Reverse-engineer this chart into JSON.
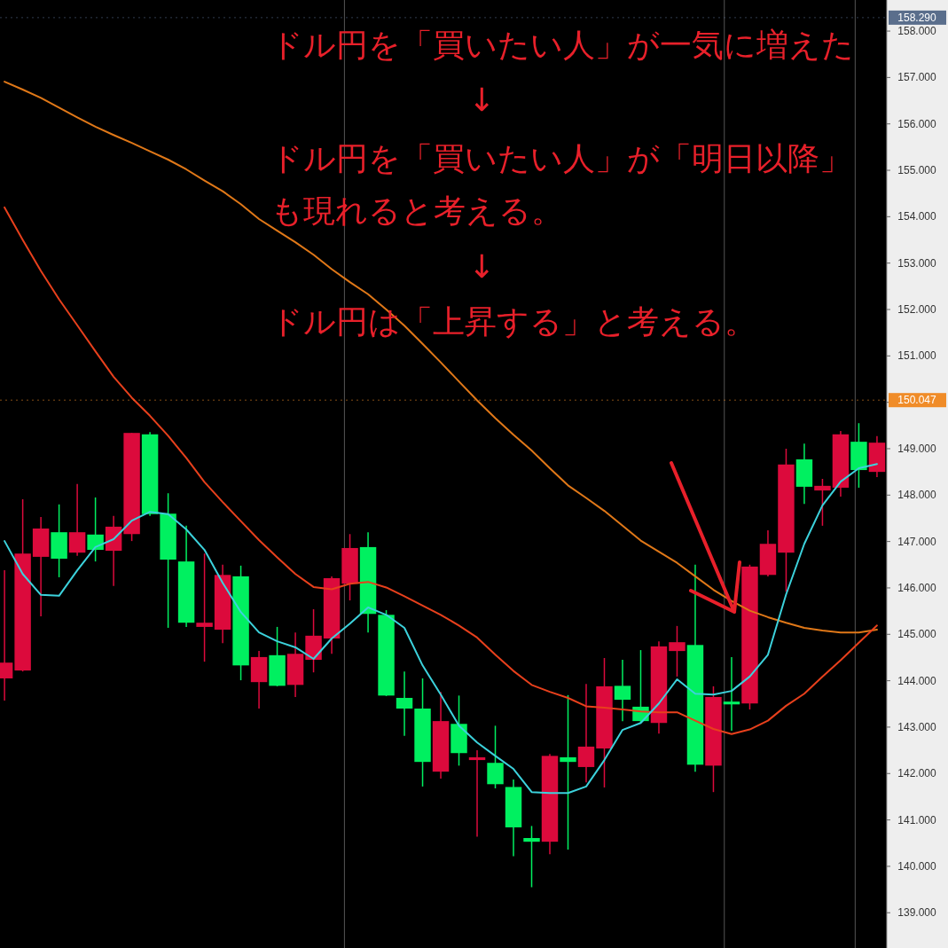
{
  "chart_data": {
    "type": "candlestick",
    "tick_labels": "y",
    "categories": [
      null,
      null,
      null,
      null,
      null,
      null,
      null,
      null,
      null,
      null,
      null,
      null,
      null,
      null,
      null,
      null,
      null,
      null,
      null,
      null,
      null,
      null,
      null,
      null,
      null,
      null,
      null,
      null,
      null,
      null,
      null,
      null,
      null,
      null,
      null,
      null,
      null,
      null,
      null,
      null,
      null,
      null,
      null,
      null,
      null,
      null,
      null,
      null,
      null
    ],
    "ohlc": [
      [
        144.05,
        146.38,
        143.57,
        144.39
      ],
      [
        144.22,
        147.91,
        144.2,
        146.74
      ],
      [
        146.67,
        147.53,
        145.39,
        147.28
      ],
      [
        147.2,
        147.8,
        146.23,
        146.63
      ],
      [
        146.76,
        148.24,
        146.69,
        147.2
      ],
      [
        147.15,
        147.95,
        146.57,
        146.82
      ],
      [
        146.8,
        147.55,
        146.04,
        147.32
      ],
      [
        147.16,
        149.34,
        147.01,
        149.34
      ],
      [
        149.31,
        149.36,
        147.55,
        147.59
      ],
      [
        147.6,
        148.04,
        145.14,
        146.61
      ],
      [
        146.57,
        147.34,
        145.16,
        145.25
      ],
      [
        145.16,
        146.74,
        144.41,
        145.25
      ],
      [
        145.1,
        146.5,
        144.81,
        146.28
      ],
      [
        146.25,
        146.48,
        144.01,
        144.33
      ],
      [
        143.97,
        144.64,
        143.4,
        144.51
      ],
      [
        144.55,
        145.16,
        143.88,
        143.89
      ],
      [
        143.91,
        145.04,
        143.65,
        144.58
      ],
      [
        144.45,
        145.54,
        144.18,
        144.97
      ],
      [
        144.91,
        146.25,
        144.58,
        146.21
      ],
      [
        146.09,
        147.16,
        145.73,
        146.86
      ],
      [
        146.88,
        147.2,
        145.04,
        145.44
      ],
      [
        145.42,
        145.52,
        143.67,
        143.68
      ],
      [
        143.63,
        144.2,
        142.81,
        143.4
      ],
      [
        143.4,
        144.05,
        141.72,
        142.25
      ],
      [
        142.04,
        143.76,
        141.89,
        143.13
      ],
      [
        143.07,
        143.68,
        142.17,
        142.44
      ],
      [
        142.29,
        142.5,
        140.64,
        142.35
      ],
      [
        142.23,
        143.03,
        141.68,
        141.77
      ],
      [
        141.71,
        141.87,
        140.22,
        140.84
      ],
      [
        140.61,
        140.87,
        139.55,
        140.53
      ],
      [
        140.53,
        142.42,
        140.26,
        142.38
      ],
      [
        142.35,
        143.69,
        140.36,
        142.25
      ],
      [
        142.14,
        143.93,
        141.81,
        142.58
      ],
      [
        142.54,
        144.49,
        141.7,
        143.88
      ],
      [
        143.89,
        144.45,
        143.13,
        143.59
      ],
      [
        143.44,
        144.66,
        143.09,
        143.13
      ],
      [
        143.09,
        144.85,
        142.86,
        144.74
      ],
      [
        144.64,
        145.18,
        144.09,
        144.83
      ],
      [
        144.77,
        146.5,
        142.04,
        142.19
      ],
      [
        142.17,
        143.88,
        141.6,
        143.65
      ],
      [
        143.55,
        144.51,
        142.92,
        143.49
      ],
      [
        143.51,
        146.5,
        143.38,
        146.46
      ],
      [
        146.28,
        147.24,
        146.25,
        146.95
      ],
      [
        146.76,
        149.0,
        145.92,
        148.66
      ],
      [
        148.77,
        149.11,
        147.81,
        148.18
      ],
      [
        148.1,
        148.35,
        147.34,
        148.2
      ],
      [
        148.16,
        149.38,
        147.97,
        149.31
      ],
      [
        149.15,
        149.55,
        148.16,
        148.54
      ],
      [
        148.5,
        149.27,
        148.39,
        149.13
      ]
    ],
    "colors": [
      "#dc0a3c",
      "#dc0a3c",
      "#dc0a3c",
      "#00f060",
      "#dc0a3c",
      "#00f060",
      "#dc0a3c",
      "#dc0a3c",
      "#00f060",
      "#00f060",
      "#00f060",
      "#dc0a3c",
      "#dc0a3c",
      "#00f060",
      "#dc0a3c",
      "#00f060",
      "#dc0a3c",
      "#dc0a3c",
      "#dc0a3c",
      "#dc0a3c",
      "#00f060",
      "#00f060",
      "#00f060",
      "#00f060",
      "#dc0a3c",
      "#00f060",
      "#dc0a3c",
      "#00f060",
      "#00f060",
      "#00f060",
      "#dc0a3c",
      "#00f060",
      "#dc0a3c",
      "#dc0a3c",
      "#00f060",
      "#00f060",
      "#dc0a3c",
      "#dc0a3c",
      "#00f060",
      "#dc0a3c",
      "#00f060",
      "#dc0a3c",
      "#dc0a3c",
      "#dc0a3c",
      "#00f060",
      "#dc0a3c",
      "#dc0a3c",
      "#00f060",
      "#dc0a3c"
    ],
    "series": [
      {
        "type": "line",
        "color": "#e07818",
        "values": [
          156.91,
          156.74,
          156.56,
          156.35,
          156.14,
          155.94,
          155.76,
          155.59,
          155.41,
          155.23,
          155.02,
          154.78,
          154.55,
          154.27,
          153.95,
          153.7,
          153.45,
          153.18,
          152.87,
          152.59,
          152.33,
          152.0,
          151.65,
          151.26,
          150.86,
          150.45,
          150.04,
          149.66,
          149.3,
          148.96,
          148.58,
          148.21,
          147.94,
          147.66,
          147.34,
          147.02,
          146.78,
          146.54,
          146.25,
          145.96,
          145.72,
          145.51,
          145.37,
          145.25,
          145.14,
          145.08,
          145.04,
          145.04,
          145.1
        ]
      },
      {
        "type": "line",
        "color": "#e8401c",
        "values": [
          154.2,
          153.5,
          152.83,
          152.22,
          151.66,
          151.1,
          150.55,
          150.1,
          149.71,
          149.28,
          148.8,
          148.28,
          147.85,
          147.44,
          147.03,
          146.66,
          146.3,
          146.02,
          145.97,
          146.09,
          146.13,
          146.01,
          145.82,
          145.62,
          145.42,
          145.19,
          144.93,
          144.56,
          144.21,
          143.91,
          143.76,
          143.63,
          143.45,
          143.42,
          143.38,
          143.34,
          143.32,
          143.32,
          143.14,
          142.96,
          142.85,
          142.95,
          143.14,
          143.46,
          143.72,
          144.09,
          144.44,
          144.82,
          145.19
        ]
      },
      {
        "type": "line",
        "color": "#3cd2dc",
        "values": [
          147.01,
          146.3,
          145.85,
          145.83,
          146.38,
          146.88,
          147.05,
          147.45,
          147.64,
          147.59,
          147.26,
          146.82,
          146.11,
          145.48,
          145.04,
          144.85,
          144.72,
          144.47,
          144.91,
          145.23,
          145.58,
          145.42,
          145.14,
          144.33,
          143.7,
          143.03,
          142.67,
          142.38,
          142.1,
          141.6,
          141.58,
          141.58,
          141.72,
          142.29,
          142.94,
          143.09,
          143.51,
          144.03,
          143.72,
          143.7,
          143.78,
          144.09,
          144.56,
          145.86,
          146.95,
          147.78,
          148.29,
          148.58,
          148.67
        ]
      }
    ],
    "ylim": [
      138.24,
      158.67
    ],
    "yticks": [
      {
        "value": 139,
        "label": "139.000"
      },
      {
        "value": 140,
        "label": "140.000"
      },
      {
        "value": 141,
        "label": "141.000"
      },
      {
        "value": 142,
        "label": "142.000"
      },
      {
        "value": 143,
        "label": "143.000"
      },
      {
        "value": 144,
        "label": "144.000"
      },
      {
        "value": 145,
        "label": "145.000"
      },
      {
        "value": 146,
        "label": "146.000"
      },
      {
        "value": 147,
        "label": "147.000"
      },
      {
        "value": 148,
        "label": "148.000"
      },
      {
        "value": 149,
        "label": "149.000"
      },
      {
        "value": 150,
        "label": null
      },
      {
        "value": 151,
        "label": "151.000"
      },
      {
        "value": 152,
        "label": "152.000"
      },
      {
        "value": 153,
        "label": "153.000"
      },
      {
        "value": 154,
        "label": "154.000"
      },
      {
        "value": 155,
        "label": "155.000"
      },
      {
        "value": 156,
        "label": "156.000"
      },
      {
        "value": 157,
        "label": "157.000"
      },
      {
        "value": 158,
        "label": "158.000"
      }
    ],
    "ref_lines": [
      {
        "axis": "y",
        "value": 150.047,
        "label": "150.047",
        "color": "#f08c28"
      },
      {
        "axis": "y",
        "value": 158.29,
        "label": "158.290",
        "color": "#5a6e8c"
      }
    ],
    "annotations": [
      "ドル円を「買いたい人」が一気に増えた",
      "↓",
      "ドル円を「買いたい人」が「明日以降」",
      "も現れると考える。",
      "↓",
      "ドル円は「上昇する」と考える。"
    ]
  }
}
